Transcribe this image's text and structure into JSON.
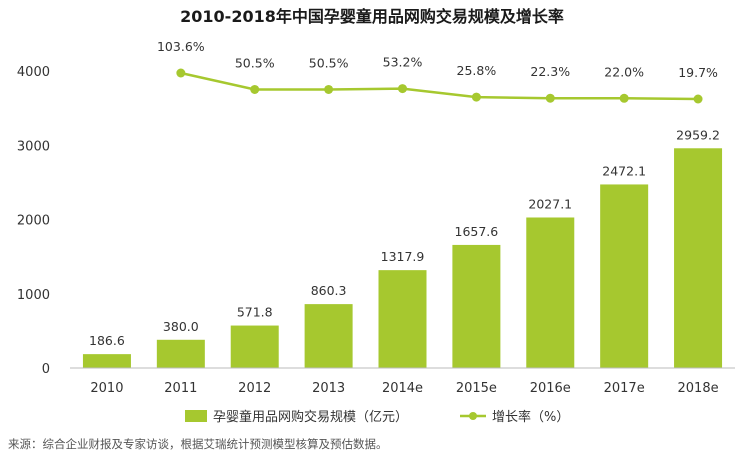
{
  "chart_data": {
    "type": "bar",
    "title": "2010-2018年中国孕婴童用品网购交易规模及增长率",
    "categories": [
      "2010",
      "2011",
      "2012",
      "2013",
      "2014e",
      "2015e",
      "2016e",
      "2017e",
      "2018e"
    ],
    "series": [
      {
        "name": "孕婴童用品网购交易规模（亿元）",
        "type": "bar",
        "values": [
          186.6,
          380.0,
          571.8,
          860.3,
          1317.9,
          1657.6,
          2027.1,
          2472.1,
          2959.2
        ],
        "labels": [
          "186.6",
          "380.0",
          "571.8",
          "860.3",
          "1317.9",
          "1657.6",
          "2027.1",
          "2472.1",
          "2959.2"
        ]
      },
      {
        "name": "增长率（%）",
        "type": "line",
        "values": [
          null,
          103.6,
          50.5,
          50.5,
          53.2,
          25.8,
          22.3,
          22.0,
          19.7
        ],
        "labels": [
          "",
          "103.6%",
          "50.5%",
          "50.5%",
          "53.2%",
          "25.8%",
          "22.3%",
          "22.0%",
          "19.7%"
        ]
      }
    ],
    "yaxis": {
      "ticks": [
        "0",
        "1000",
        "2000",
        "3000",
        "4000"
      ],
      "ylim": [
        0,
        4000
      ]
    },
    "colors": {
      "bar": "#a6c82f",
      "line": "#a6c82f",
      "marker": "#a6c82f",
      "axis": "#bbbbbb"
    },
    "legend_position": "bottom",
    "grid": false
  },
  "source_note": "来源：综合企业财报及专家访谈，根据艾瑞统计预测模型核算及预估数据。"
}
